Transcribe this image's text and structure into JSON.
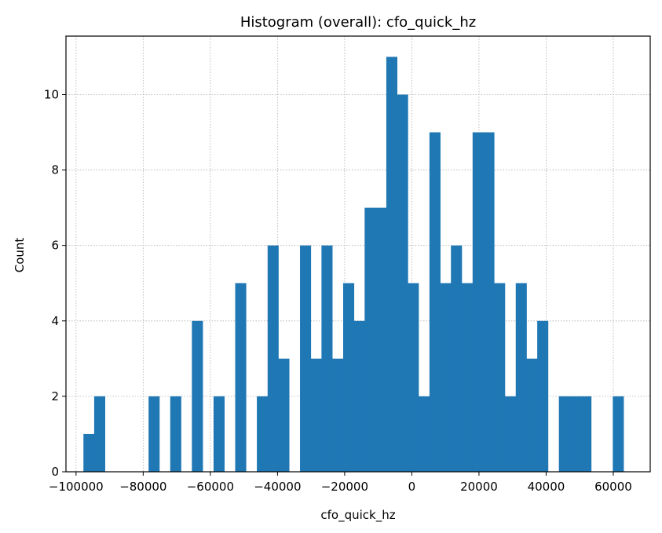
{
  "chart_data": {
    "type": "bar",
    "title": "Histogram (overall): cfo_quick_hz",
    "xlabel": "cfo_quick_hz",
    "ylabel": "Count",
    "xlim": [
      -103000,
      71000
    ],
    "ylim": [
      0,
      11.55
    ],
    "xticks": [
      -100000,
      -80000,
      -60000,
      -40000,
      -20000,
      0,
      20000,
      40000,
      60000
    ],
    "xtick_labels": [
      "−100000",
      "−80000",
      "−60000",
      "−40000",
      "−20000",
      "0",
      "20000",
      "40000",
      "60000"
    ],
    "yticks": [
      0,
      2,
      4,
      6,
      8,
      10
    ],
    "ytick_labels": [
      "0",
      "2",
      "4",
      "6",
      "8",
      "10"
    ],
    "grid": true,
    "bar_color": "#1f77b4",
    "bins": [
      {
        "x0": -97800,
        "x1": -94600,
        "count": 1
      },
      {
        "x0": -94600,
        "x1": -91400,
        "count": 2
      },
      {
        "x0": -78400,
        "x1": -75200,
        "count": 2
      },
      {
        "x0": -71950,
        "x1": -68750,
        "count": 2
      },
      {
        "x0": -65500,
        "x1": -62300,
        "count": 4
      },
      {
        "x0": -59050,
        "x1": -55850,
        "count": 2
      },
      {
        "x0": -52600,
        "x1": -49400,
        "count": 5
      },
      {
        "x0": -46150,
        "x1": -42950,
        "count": 2
      },
      {
        "x0": -42950,
        "x1": -39750,
        "count": 6
      },
      {
        "x0": -39750,
        "x1": -36550,
        "count": 3
      },
      {
        "x0": -33300,
        "x1": -30100,
        "count": 6
      },
      {
        "x0": -30100,
        "x1": -26900,
        "count": 3
      },
      {
        "x0": -26900,
        "x1": -23700,
        "count": 6
      },
      {
        "x0": -23700,
        "x1": -20450,
        "count": 3
      },
      {
        "x0": -20450,
        "x1": -17250,
        "count": 5
      },
      {
        "x0": -17250,
        "x1": -14050,
        "count": 4
      },
      {
        "x0": -14050,
        "x1": -10850,
        "count": 7
      },
      {
        "x0": -10850,
        "x1": -7600,
        "count": 7
      },
      {
        "x0": -7600,
        "x1": -4400,
        "count": 11
      },
      {
        "x0": -4400,
        "x1": -1200,
        "count": 10
      },
      {
        "x0": -1200,
        "x1": 2000,
        "count": 5
      },
      {
        "x0": 2000,
        "x1": 5250,
        "count": 2
      },
      {
        "x0": 5250,
        "x1": 8450,
        "count": 9
      },
      {
        "x0": 8450,
        "x1": 11650,
        "count": 5
      },
      {
        "x0": 11650,
        "x1": 14850,
        "count": 6
      },
      {
        "x0": 14850,
        "x1": 18100,
        "count": 5
      },
      {
        "x0": 18100,
        "x1": 21300,
        "count": 9
      },
      {
        "x0": 21300,
        "x1": 24500,
        "count": 9
      },
      {
        "x0": 24500,
        "x1": 27700,
        "count": 5
      },
      {
        "x0": 27700,
        "x1": 30950,
        "count": 2
      },
      {
        "x0": 30950,
        "x1": 34150,
        "count": 5
      },
      {
        "x0": 34150,
        "x1": 37350,
        "count": 3
      },
      {
        "x0": 37350,
        "x1": 40550,
        "count": 4
      },
      {
        "x0": 43800,
        "x1": 47000,
        "count": 2
      },
      {
        "x0": 47000,
        "x1": 50200,
        "count": 2
      },
      {
        "x0": 50200,
        "x1": 53400,
        "count": 2
      },
      {
        "x0": 59850,
        "x1": 63050,
        "count": 2
      }
    ]
  }
}
